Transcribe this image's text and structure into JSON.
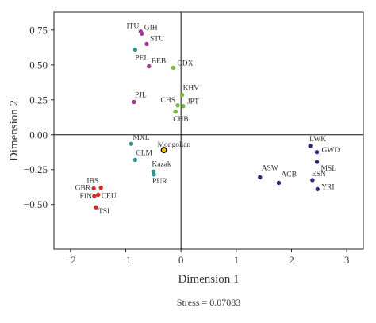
{
  "chart_data": {
    "type": "scatter",
    "xlabel": "Dimension 1",
    "ylabel": "Dimension 2",
    "xlim": [
      -2.3,
      3.3
    ],
    "ylim": [
      -0.82,
      0.88
    ],
    "xticks": [
      -2,
      -1,
      0,
      1,
      2,
      3
    ],
    "xtick_labels": [
      "−2",
      "−1",
      "0",
      "1",
      "2",
      "3"
    ],
    "yticks": [
      0.75,
      0.5,
      0.25,
      0.0,
      -0.25,
      -0.5
    ],
    "ytick_labels": [
      "0.75",
      "0.50",
      "0.25",
      "0.00",
      "−0.25",
      "−0.50"
    ],
    "reference_lines": {
      "x": 0,
      "y": 0
    },
    "grid": false,
    "legend": "none",
    "footnote": "Stress = 0.07083",
    "colors": {
      "purple": "#a0399a",
      "teal": "#33918f",
      "green": "#7ab838",
      "navy": "#2b2a7e",
      "red": "#d42a2a",
      "mongolian": "#000000"
    },
    "points": [
      {
        "label": "ITU",
        "x": -0.73,
        "y": 0.74,
        "color": "purple"
      },
      {
        "label": "GIH",
        "x": -0.71,
        "y": 0.725,
        "color": "purple"
      },
      {
        "label": "STU",
        "x": -0.62,
        "y": 0.65,
        "color": "purple"
      },
      {
        "label": "PEL",
        "x": -0.83,
        "y": 0.61,
        "color": "teal"
      },
      {
        "label": "BEB",
        "x": -0.58,
        "y": 0.49,
        "color": "purple"
      },
      {
        "label": "CDX",
        "x": -0.14,
        "y": 0.48,
        "color": "green"
      },
      {
        "label": "PJL",
        "x": -0.85,
        "y": 0.235,
        "color": "purple"
      },
      {
        "label": "KHV",
        "x": 0.02,
        "y": 0.285,
        "color": "green"
      },
      {
        "label": "CHS",
        "x": -0.06,
        "y": 0.21,
        "color": "green"
      },
      {
        "label": "JPT",
        "x": 0.04,
        "y": 0.205,
        "color": "green"
      },
      {
        "label": "CHB",
        "x": -0.1,
        "y": 0.165,
        "color": "green"
      },
      {
        "label": "MXL",
        "x": -0.9,
        "y": -0.065,
        "color": "teal"
      },
      {
        "label": "Mongolian",
        "x": -0.31,
        "y": -0.11,
        "color": "mongolian"
      },
      {
        "label": "CLM",
        "x": -0.83,
        "y": -0.18,
        "color": "teal"
      },
      {
        "label": "Kazak",
        "x": -0.5,
        "y": -0.265,
        "color": "teal"
      },
      {
        "label": "PUR",
        "x": -0.49,
        "y": -0.285,
        "color": "teal"
      },
      {
        "label": "LWK",
        "x": 2.34,
        "y": -0.08,
        "color": "navy"
      },
      {
        "label": "GWD",
        "x": 2.46,
        "y": -0.125,
        "color": "navy"
      },
      {
        "label": "MSL",
        "x": 2.46,
        "y": -0.195,
        "color": "navy"
      },
      {
        "label": "ASW",
        "x": 1.43,
        "y": -0.305,
        "color": "navy"
      },
      {
        "label": "ACB",
        "x": 1.77,
        "y": -0.345,
        "color": "navy"
      },
      {
        "label": "ESN",
        "x": 2.38,
        "y": -0.325,
        "color": "navy"
      },
      {
        "label": "YRI",
        "x": 2.47,
        "y": -0.39,
        "color": "navy"
      },
      {
        "label": "GBR",
        "x": -1.58,
        "y": -0.385,
        "color": "red"
      },
      {
        "label": "IBS",
        "x": -1.45,
        "y": -0.38,
        "color": "red"
      },
      {
        "label": "FIN",
        "x": -1.57,
        "y": -0.44,
        "color": "red"
      },
      {
        "label": "CEU",
        "x": -1.5,
        "y": -0.43,
        "color": "red"
      },
      {
        "label": "TSI",
        "x": -1.54,
        "y": -0.52,
        "color": "red"
      }
    ]
  }
}
